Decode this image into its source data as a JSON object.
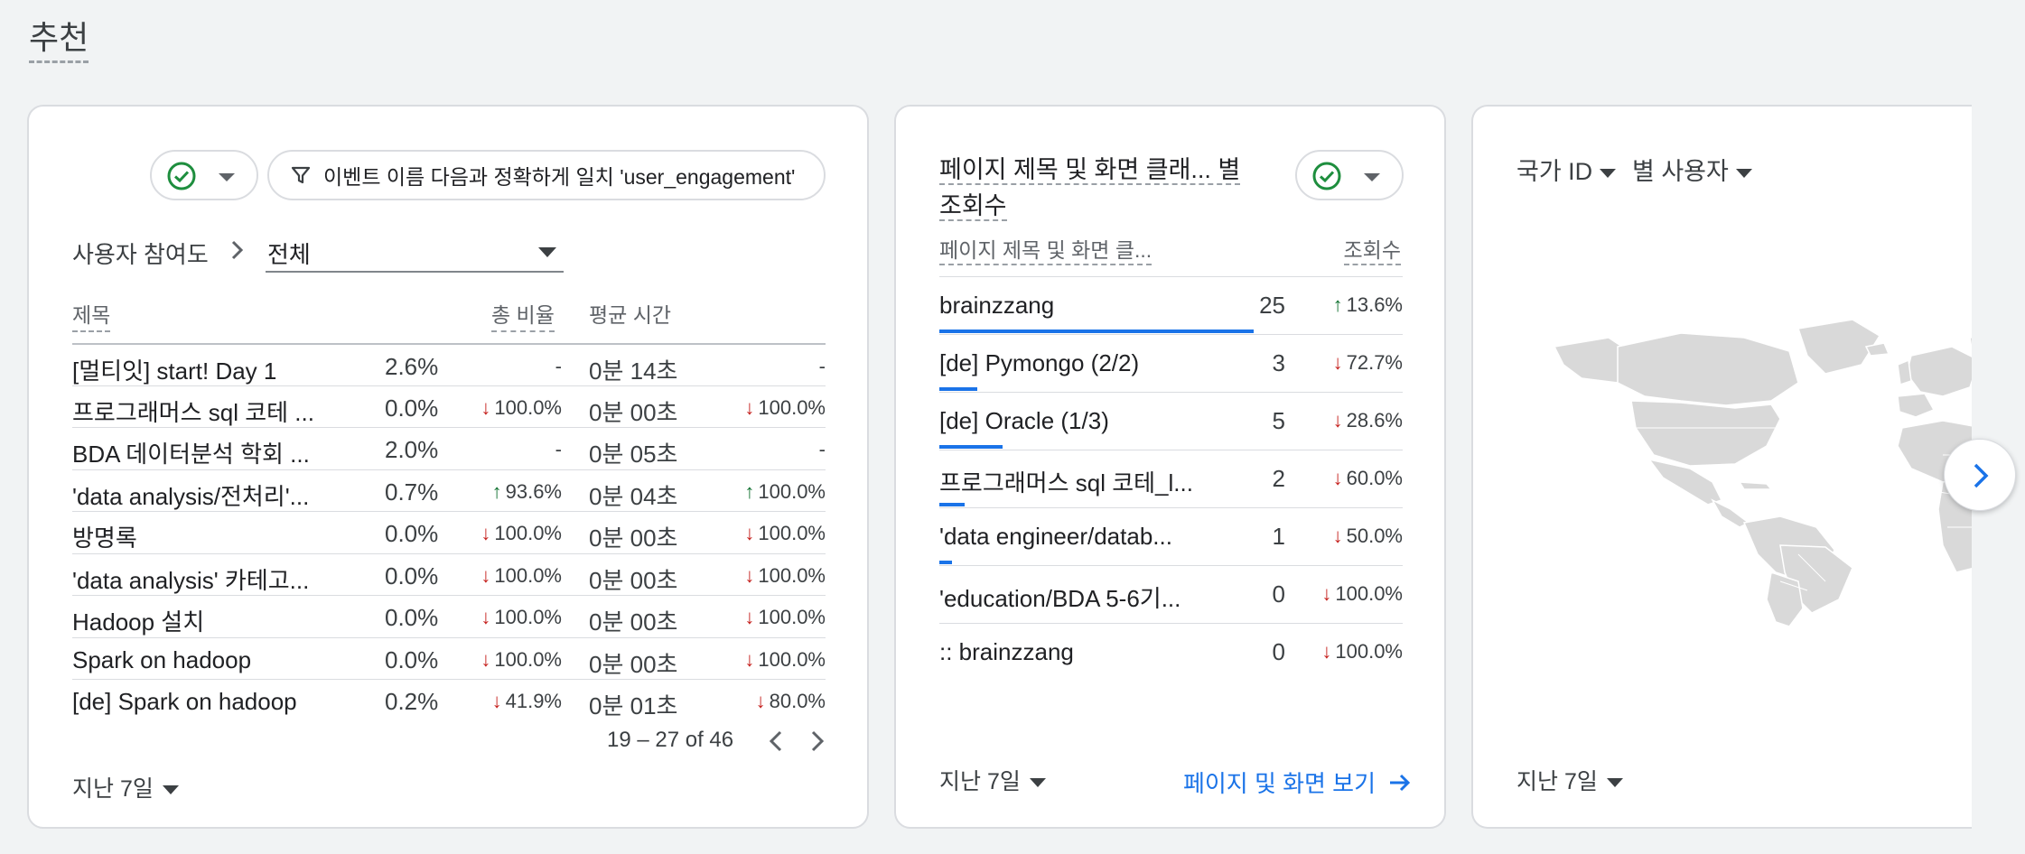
{
  "section": {
    "title": "추천"
  },
  "card1": {
    "filter_chip": "이벤트 이름 다음과 정확하게 일치 'user_engagement'",
    "breadcrumb": {
      "label": "사용자 참여도",
      "select_value": "전체"
    },
    "headers": {
      "title": "제목",
      "share": "총 비율",
      "avg_time": "평균 시간"
    },
    "rows": [
      {
        "title": "[멀티잇] start! Day 1",
        "share": "2.6%",
        "chg1": "-",
        "chg1_dir": "none",
        "time": "0분 14초",
        "chg2": "-",
        "chg2_dir": "none"
      },
      {
        "title": "프로그래머스 sql 코테 ...",
        "share": "0.0%",
        "chg1": "100.0%",
        "chg1_dir": "down",
        "time": "0분 00초",
        "chg2": "100.0%",
        "chg2_dir": "down"
      },
      {
        "title": "BDA 데이터분석 학회 ...",
        "share": "2.0%",
        "chg1": "-",
        "chg1_dir": "none",
        "time": "0분 05초",
        "chg2": "-",
        "chg2_dir": "none"
      },
      {
        "title": "'data analysis/전처리'...",
        "share": "0.7%",
        "chg1": "93.6%",
        "chg1_dir": "up",
        "time": "0분 04초",
        "chg2": "100.0%",
        "chg2_dir": "up"
      },
      {
        "title": "방명록",
        "share": "0.0%",
        "chg1": "100.0%",
        "chg1_dir": "down",
        "time": "0분 00초",
        "chg2": "100.0%",
        "chg2_dir": "down"
      },
      {
        "title": "'data analysis' 카테고...",
        "share": "0.0%",
        "chg1": "100.0%",
        "chg1_dir": "down",
        "time": "0분 00초",
        "chg2": "100.0%",
        "chg2_dir": "down"
      },
      {
        "title": "Hadoop 설치",
        "share": "0.0%",
        "chg1": "100.0%",
        "chg1_dir": "down",
        "time": "0분 00초",
        "chg2": "100.0%",
        "chg2_dir": "down"
      },
      {
        "title": "Spark on hadoop",
        "share": "0.0%",
        "chg1": "100.0%",
        "chg1_dir": "down",
        "time": "0분 00초",
        "chg2": "100.0%",
        "chg2_dir": "down"
      },
      {
        "title": "[de] Spark on hadoop",
        "share": "0.2%",
        "chg1": "41.9%",
        "chg1_dir": "down",
        "time": "0분 01초",
        "chg2": "80.0%",
        "chg2_dir": "down"
      }
    ],
    "pagination": "19 – 27 of 46",
    "period": "지난 7일"
  },
  "card2": {
    "title_line1": "페이지 제목 및 화면 클래... 별",
    "title_line2": "조회수",
    "col_name": "페이지 제목 및 화면 클...",
    "col_views": "조회수",
    "rows": [
      {
        "name": "brainzzang",
        "views": 25,
        "chg": "13.6%",
        "dir": "up"
      },
      {
        "name": "[de] Pymongo (2/2)",
        "views": 3,
        "chg": "72.7%",
        "dir": "down"
      },
      {
        "name": "[de] Oracle (1/3)",
        "views": 5,
        "chg": "28.6%",
        "dir": "down"
      },
      {
        "name": "프로그래머스 sql 코테_l...",
        "views": 2,
        "chg": "60.0%",
        "dir": "down"
      },
      {
        "name": "'data engineer/datab...",
        "views": 1,
        "chg": "50.0%",
        "dir": "down"
      },
      {
        "name": "'education/BDA 5-6기...",
        "views": 0,
        "chg": "100.0%",
        "dir": "down"
      },
      {
        "name": ":: brainzzang",
        "views": 0,
        "chg": "100.0%",
        "dir": "down"
      }
    ],
    "period": "지난 7일",
    "link": "페이지 및 화면 보기"
  },
  "card3": {
    "dim1": "국가 ID",
    "dim2": "별 사용자",
    "period": "지난 7일"
  },
  "colors": {
    "accent": "#1a73e8",
    "down": "#c5221f",
    "up": "#137333",
    "check": "#1e8e3e"
  },
  "icons": [
    "check-circle-icon",
    "filter-icon",
    "chevron-right-icon",
    "chevron-left-icon",
    "arrow-right-icon",
    "caret-down-icon",
    "world-map"
  ]
}
